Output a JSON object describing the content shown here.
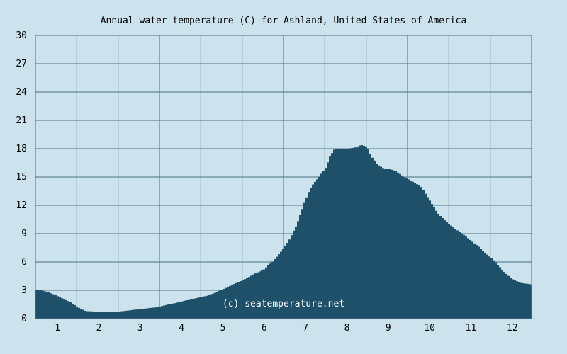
{
  "chart_data": {
    "type": "area",
    "title": "Annual water temperature (C) for Ashland, United States of America",
    "xlabel": "",
    "ylabel": "",
    "xlim": [
      0.5,
      12.5
    ],
    "ylim": [
      0,
      30
    ],
    "yticks": [
      0,
      3,
      6,
      9,
      12,
      15,
      18,
      21,
      24,
      27,
      30
    ],
    "xticks": [
      1,
      2,
      3,
      4,
      5,
      6,
      7,
      8,
      9,
      10,
      11,
      12
    ],
    "grid": true,
    "watermark": "(c) seatemperature.net",
    "colors": {
      "background": "#cce3ee",
      "fill": "#1f5069",
      "grid": "#4d6f82"
    },
    "series": [
      {
        "x": [
          0.5,
          0.6,
          0.8,
          1.0,
          1.1,
          1.3,
          1.5,
          1.7,
          1.9,
          2.0,
          2.2,
          2.4,
          2.6,
          2.8,
          3.0,
          3.2,
          3.4,
          3.6,
          3.8,
          4.0,
          4.2,
          4.4,
          4.6,
          4.8,
          5.0,
          5.2,
          5.4,
          5.6,
          5.8,
          6.0,
          6.2,
          6.4,
          6.6,
          6.8,
          7.0,
          7.1,
          7.2,
          7.3,
          7.5,
          7.6,
          7.7,
          7.85,
          8.0,
          8.2,
          8.35,
          8.5,
          8.6,
          8.75,
          8.9,
          9.0,
          9.2,
          9.4,
          9.6,
          9.8,
          10.0,
          10.2,
          10.4,
          10.6,
          10.8,
          11.0,
          11.2,
          11.4,
          11.6,
          11.8,
          12.0,
          12.2,
          12.5
        ],
        "values": [
          3.0,
          3.0,
          2.8,
          2.4,
          2.2,
          1.8,
          1.2,
          0.8,
          0.75,
          0.7,
          0.7,
          0.7,
          0.8,
          0.9,
          1.0,
          1.1,
          1.2,
          1.4,
          1.6,
          1.8,
          2.0,
          2.2,
          2.4,
          2.7,
          3.1,
          3.5,
          3.9,
          4.3,
          4.8,
          5.2,
          6.0,
          7.0,
          8.2,
          10.0,
          12.5,
          13.6,
          14.3,
          14.8,
          16.0,
          17.2,
          17.9,
          18.0,
          18.0,
          18.1,
          18.4,
          18.2,
          17.2,
          16.3,
          15.9,
          15.9,
          15.6,
          15.0,
          14.5,
          14.0,
          12.6,
          11.2,
          10.3,
          9.6,
          9.0,
          8.3,
          7.6,
          6.8,
          6.0,
          5.0,
          4.2,
          3.8,
          3.6
        ]
      }
    ]
  }
}
